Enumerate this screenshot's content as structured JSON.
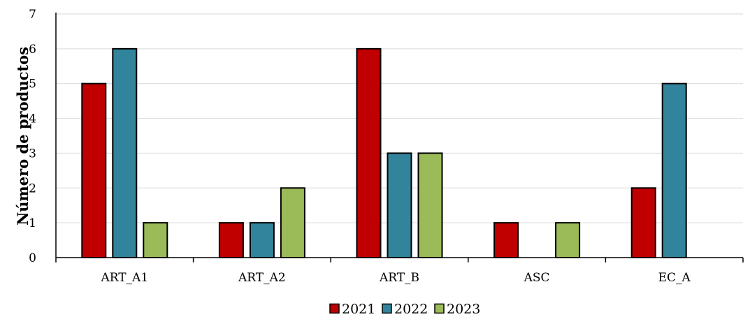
{
  "chart_data": {
    "type": "bar",
    "title": "",
    "xlabel": "",
    "ylabel": "Número de productos",
    "categories": [
      "ART_A1",
      "ART_A2",
      "ART_B",
      "ASC",
      "EC_A"
    ],
    "series": [
      {
        "name": "2021",
        "color": "#c00000",
        "values": [
          5,
          1,
          6,
          1,
          2
        ]
      },
      {
        "name": "2022",
        "color": "#31849b",
        "values": [
          6,
          1,
          3,
          0,
          5
        ]
      },
      {
        "name": "2023",
        "color": "#9bbb59",
        "values": [
          1,
          2,
          3,
          1,
          0
        ]
      }
    ],
    "ylim": [
      0,
      7
    ],
    "yticks": [
      "0",
      "1",
      "2",
      "3",
      "4",
      "5",
      "6",
      "7"
    ],
    "grid": true,
    "legend_position": "bottom"
  }
}
